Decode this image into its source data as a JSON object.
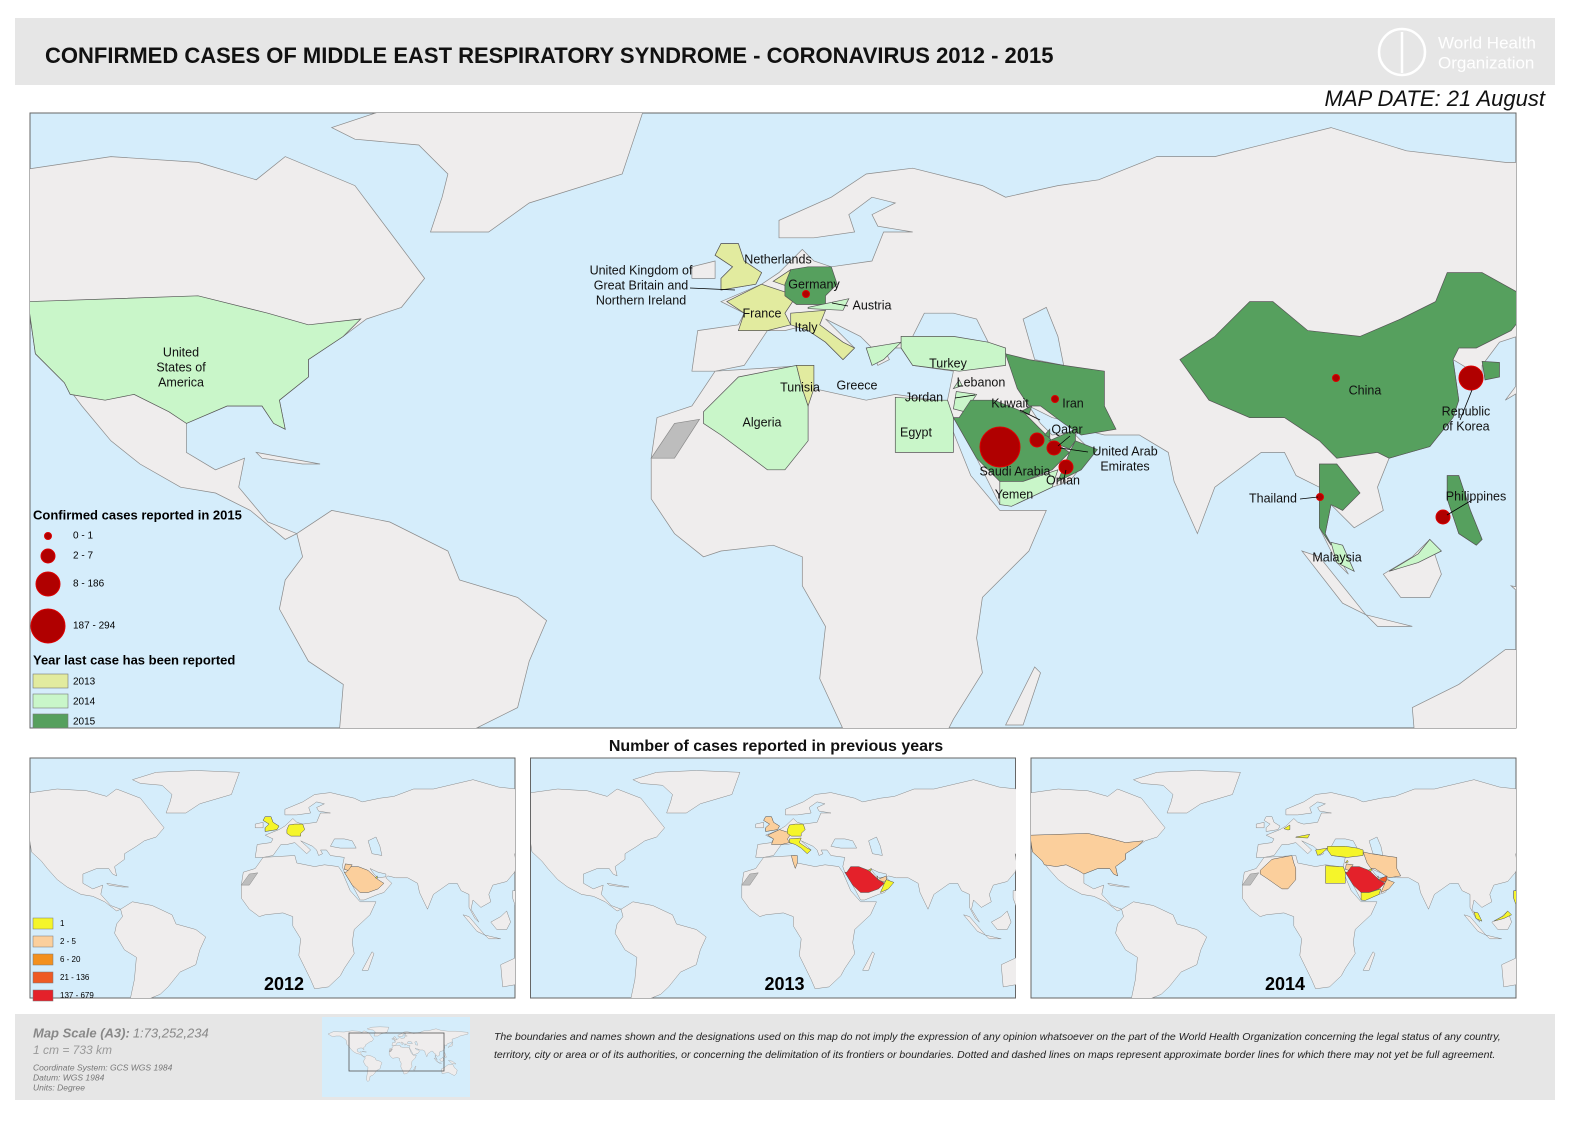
{
  "header": {
    "title": "CONFIRMED CASES OF MIDDLE EAST RESPIRATORY SYNDROME - CORONAVIRUS 2012 - 2015",
    "organization": [
      "World Health",
      "Organization"
    ],
    "map_date": "MAP DATE: 21 August"
  },
  "main_map": {
    "country_labels": [
      [
        "United Kingdom of",
        "Great Britain and",
        "Northern Ireland"
      ],
      [
        "Netherlands"
      ],
      [
        "Germany"
      ],
      [
        "Austria"
      ],
      [
        "France"
      ],
      [
        "Italy"
      ],
      [
        "United",
        "States of",
        "America"
      ],
      [
        "Turkey"
      ],
      [
        "Lebanon"
      ],
      [
        "Tunisia"
      ],
      [
        "Greece"
      ],
      [
        "Jordan"
      ],
      [
        "Kuwait"
      ],
      [
        "Iran"
      ],
      [
        "Algeria"
      ],
      [
        "Egypt"
      ],
      [
        "Qatar"
      ],
      [
        "United Arab",
        "Emirates"
      ],
      [
        "Saudi Arabia"
      ],
      [
        "Oman"
      ],
      [
        "Yemen"
      ],
      [
        "China"
      ],
      [
        "Republic",
        "of Korea"
      ],
      [
        "Thailand"
      ],
      [
        "Philippines"
      ],
      [
        "Malaysia"
      ]
    ],
    "legend": {
      "cases_title": "Confirmed cases reported in 2015",
      "case_classes": [
        "0 - 1",
        "2 - 7",
        "8 - 186",
        "187 - 294"
      ],
      "bubble_color": "#b00000",
      "year_title": "Year last case has been reported",
      "year_classes": [
        {
          "label": "2013",
          "color": "#e2eb9f"
        },
        {
          "label": "2014",
          "color": "#c9f6c9"
        },
        {
          "label": "2015",
          "color": "#56a05e"
        }
      ]
    }
  },
  "previous_years": {
    "title": "Number of cases reported in previous years",
    "insets": [
      {
        "year": "2012"
      },
      {
        "year": "2013"
      },
      {
        "year": "2014"
      }
    ],
    "legend": [
      {
        "label": "1",
        "color": "#f5f52a"
      },
      {
        "label": "2 - 5",
        "color": "#fbcf9c"
      },
      {
        "label": "6 - 20",
        "color": "#f3901e"
      },
      {
        "label": "21 - 136",
        "color": "#ee5a24"
      },
      {
        "label": "137 - 679",
        "color": "#e4212a"
      }
    ]
  },
  "footer": {
    "scale_label": "Map Scale (A3):",
    "scale_value": "1:73,252,234",
    "scale_equivalence": "1 cm = 733 km",
    "coordinate_system": "Coordinate System: GCS WGS 1984",
    "datum": "Datum: WGS 1984",
    "units": "Units: Degree",
    "disclaimer": "The boundaries and names shown and the designations used on this map do not imply the expression of any opinion whatsoever on the part of the World Health Organization concerning the legal status of any country, territory, city or area or of its authorities, or concerning the delimitation of its frontiers or boundaries. Dotted and dashed lines on maps represent approximate border lines for which there may not yet be full agreement."
  }
}
